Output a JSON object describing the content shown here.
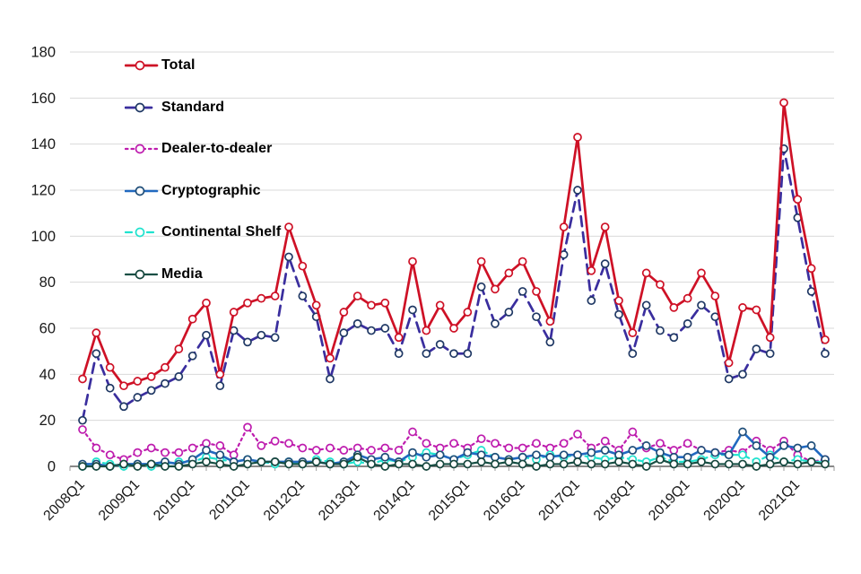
{
  "chart_data": {
    "type": "line",
    "title": "",
    "xlabel": "",
    "ylabel": "",
    "ylim": [
      0,
      180
    ],
    "y_tick_step": 20,
    "y_tick_labels": [
      "0",
      "20",
      "40",
      "60",
      "80",
      "100",
      "120",
      "140",
      "160",
      "180"
    ],
    "grid": "horizontal",
    "legend_position": "upper-left-inside",
    "x_label_every": 4,
    "x_categories": [
      "2008Q1",
      "2008Q2",
      "2008Q3",
      "2008Q4",
      "2009Q1",
      "2009Q2",
      "2009Q3",
      "2009Q4",
      "2010Q1",
      "2010Q2",
      "2010Q3",
      "2010Q4",
      "2011Q1",
      "2011Q2",
      "2011Q3",
      "2011Q4",
      "2012Q1",
      "2012Q2",
      "2012Q3",
      "2012Q4",
      "2013Q1",
      "2013Q2",
      "2013Q3",
      "2013Q4",
      "2014Q1",
      "2014Q2",
      "2014Q3",
      "2014Q4",
      "2015Q1",
      "2015Q2",
      "2015Q3",
      "2015Q4",
      "2016Q1",
      "2016Q2",
      "2016Q3",
      "2016Q4",
      "2017Q1",
      "2017Q2",
      "2017Q3",
      "2017Q4",
      "2018Q1",
      "2018Q2",
      "2018Q3",
      "2018Q4",
      "2019Q1",
      "2019Q2",
      "2019Q3",
      "2019Q4",
      "2020Q1",
      "2020Q2",
      "2020Q3",
      "2020Q4",
      "2021Q1",
      "2021Q2",
      "2021Q3"
    ],
    "series": [
      {
        "name": "Total",
        "color": "#CE1126",
        "marker_stroke": "#CE1126",
        "dash": "",
        "width": 2.7,
        "values": [
          38,
          58,
          43,
          35,
          37,
          39,
          43,
          51,
          64,
          71,
          40,
          67,
          71,
          73,
          74,
          104,
          87,
          70,
          47,
          67,
          74,
          70,
          71,
          56,
          89,
          59,
          70,
          60,
          67,
          89,
          77,
          84,
          89,
          76,
          63,
          104,
          143,
          85,
          104,
          72,
          58,
          84,
          79,
          69,
          73,
          84,
          74,
          45,
          69,
          68,
          56,
          158,
          116,
          86,
          55
        ]
      },
      {
        "name": "Standard",
        "color": "#3A2E9E",
        "marker_stroke": "#1F3864",
        "dash": "11 7",
        "width": 2.7,
        "values": [
          20,
          49,
          34,
          26,
          30,
          33,
          36,
          39,
          48,
          57,
          35,
          59,
          54,
          57,
          56,
          91,
          74,
          65,
          38,
          58,
          62,
          59,
          60,
          49,
          68,
          49,
          53,
          49,
          49,
          78,
          62,
          67,
          76,
          65,
          54,
          92,
          120,
          72,
          88,
          66,
          49,
          70,
          59,
          56,
          62,
          70,
          65,
          38,
          40,
          51,
          49,
          138,
          108,
          76,
          49
        ]
      },
      {
        "name": "Dealer-to-dealer",
        "color": "#BE1CAE",
        "marker_stroke": "#BE1CAE",
        "dash": "2.5 4",
        "width": 2.2,
        "values": [
          16,
          8,
          5,
          3,
          6,
          8,
          6,
          6,
          8,
          10,
          9,
          5,
          17,
          9,
          11,
          10,
          8,
          7,
          8,
          7,
          8,
          7,
          8,
          7,
          15,
          10,
          8,
          10,
          8,
          12,
          10,
          8,
          8,
          10,
          8,
          10,
          14,
          8,
          11,
          7,
          15,
          8,
          10,
          7,
          10,
          7,
          6,
          7,
          6,
          11,
          7,
          11,
          5,
          2,
          3
        ]
      },
      {
        "name": "Cryptographic",
        "color": "#2169C0",
        "marker_stroke": "#1F4E79",
        "dash": "",
        "width": 2.6,
        "values": [
          1,
          1,
          0,
          1,
          1,
          1,
          2,
          1,
          3,
          7,
          5,
          2,
          3,
          2,
          2,
          2,
          2,
          2,
          1,
          2,
          5,
          3,
          4,
          2,
          6,
          4,
          5,
          3,
          6,
          5,
          4,
          3,
          4,
          5,
          4,
          5,
          5,
          6,
          7,
          5,
          7,
          9,
          6,
          4,
          4,
          7,
          6,
          5,
          15,
          9,
          4,
          9,
          8,
          9,
          3
        ]
      },
      {
        "name": "Continental Shelf",
        "color": "#1FE2CE",
        "marker_stroke": "#1FE2CE",
        "dash": "7 5",
        "width": 2.2,
        "values": [
          0,
          2,
          1,
          0,
          1,
          0,
          1,
          2,
          2,
          4,
          3,
          2,
          3,
          2,
          1,
          2,
          1,
          3,
          2,
          1,
          2,
          1,
          3,
          2,
          4,
          6,
          5,
          3,
          5,
          7,
          4,
          3,
          4,
          3,
          5,
          4,
          5,
          4,
          3,
          4,
          3,
          2,
          4,
          2,
          2,
          3,
          5,
          5,
          5,
          2,
          5,
          2,
          3,
          2,
          2
        ]
      },
      {
        "name": "Media",
        "color": "#174F44",
        "marker_stroke": "#17473E",
        "dash": "",
        "width": 2.2,
        "values": [
          0,
          0,
          0,
          1,
          0,
          1,
          0,
          0,
          1,
          2,
          1,
          0,
          1,
          2,
          2,
          1,
          1,
          2,
          1,
          1,
          4,
          1,
          0,
          1,
          1,
          0,
          1,
          1,
          1,
          2,
          1,
          2,
          1,
          0,
          1,
          1,
          2,
          1,
          1,
          2,
          1,
          0,
          3,
          1,
          1,
          2,
          1,
          1,
          1,
          0,
          1,
          2,
          1,
          2,
          1
        ]
      }
    ]
  },
  "colors": {
    "gridline": "#d9d9d9",
    "axis_line": "#404040",
    "tick": "#9a9a9a",
    "tick_label": "#1a1a1a"
  }
}
